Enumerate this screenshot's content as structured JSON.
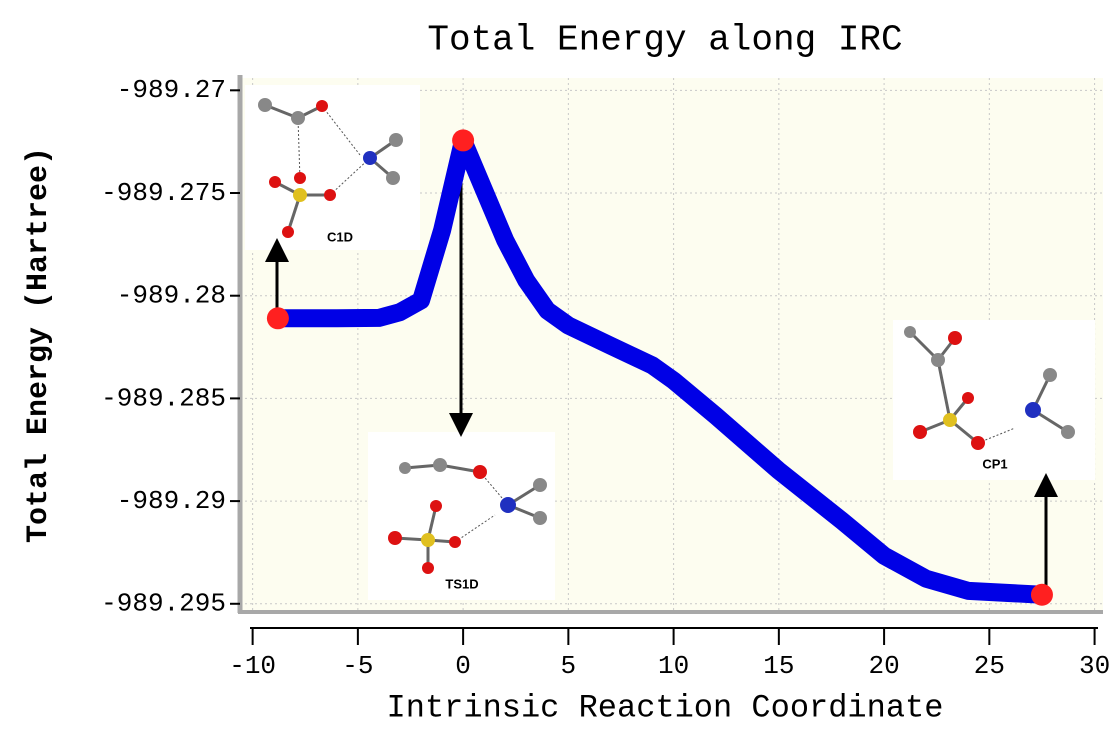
{
  "chart_data": {
    "type": "line",
    "title": "Total Energy along IRC",
    "x_label": "Intrinsic Reaction Coordinate",
    "y_label": "Total Energy (Hartree)",
    "x": [
      -8.8,
      -6,
      -4,
      -3,
      -2,
      -1,
      0,
      1,
      2,
      3,
      4,
      5,
      7,
      9,
      10,
      12,
      15,
      18,
      20,
      22,
      24,
      27.5
    ],
    "series": [
      {
        "color": "#0000e6",
        "values": [
          -989.2811,
          -989.2811,
          -989.28108,
          -989.2808,
          -989.28023,
          -989.27682,
          -989.27244,
          -989.27487,
          -989.2773,
          -989.27926,
          -989.28072,
          -989.28145,
          -989.28243,
          -989.2834,
          -989.28413,
          -989.28584,
          -989.28852,
          -989.29096,
          -989.29266,
          -989.29378,
          -989.29437,
          -989.29456
        ]
      }
    ],
    "marker_color": "#ff2020",
    "xlim": [
      -10.6,
      30.4
    ],
    "xticks": [
      -10,
      -5,
      0,
      5,
      10,
      15,
      20,
      25,
      30
    ],
    "ylim": [
      -989.2954,
      -989.2694
    ],
    "yticks": [
      -989.27,
      -989.275,
      -989.28,
      -989.285,
      -989.29,
      -989.295
    ],
    "grid": true,
    "annotations": [
      "C1D",
      "TS1D",
      "CP1"
    ]
  }
}
